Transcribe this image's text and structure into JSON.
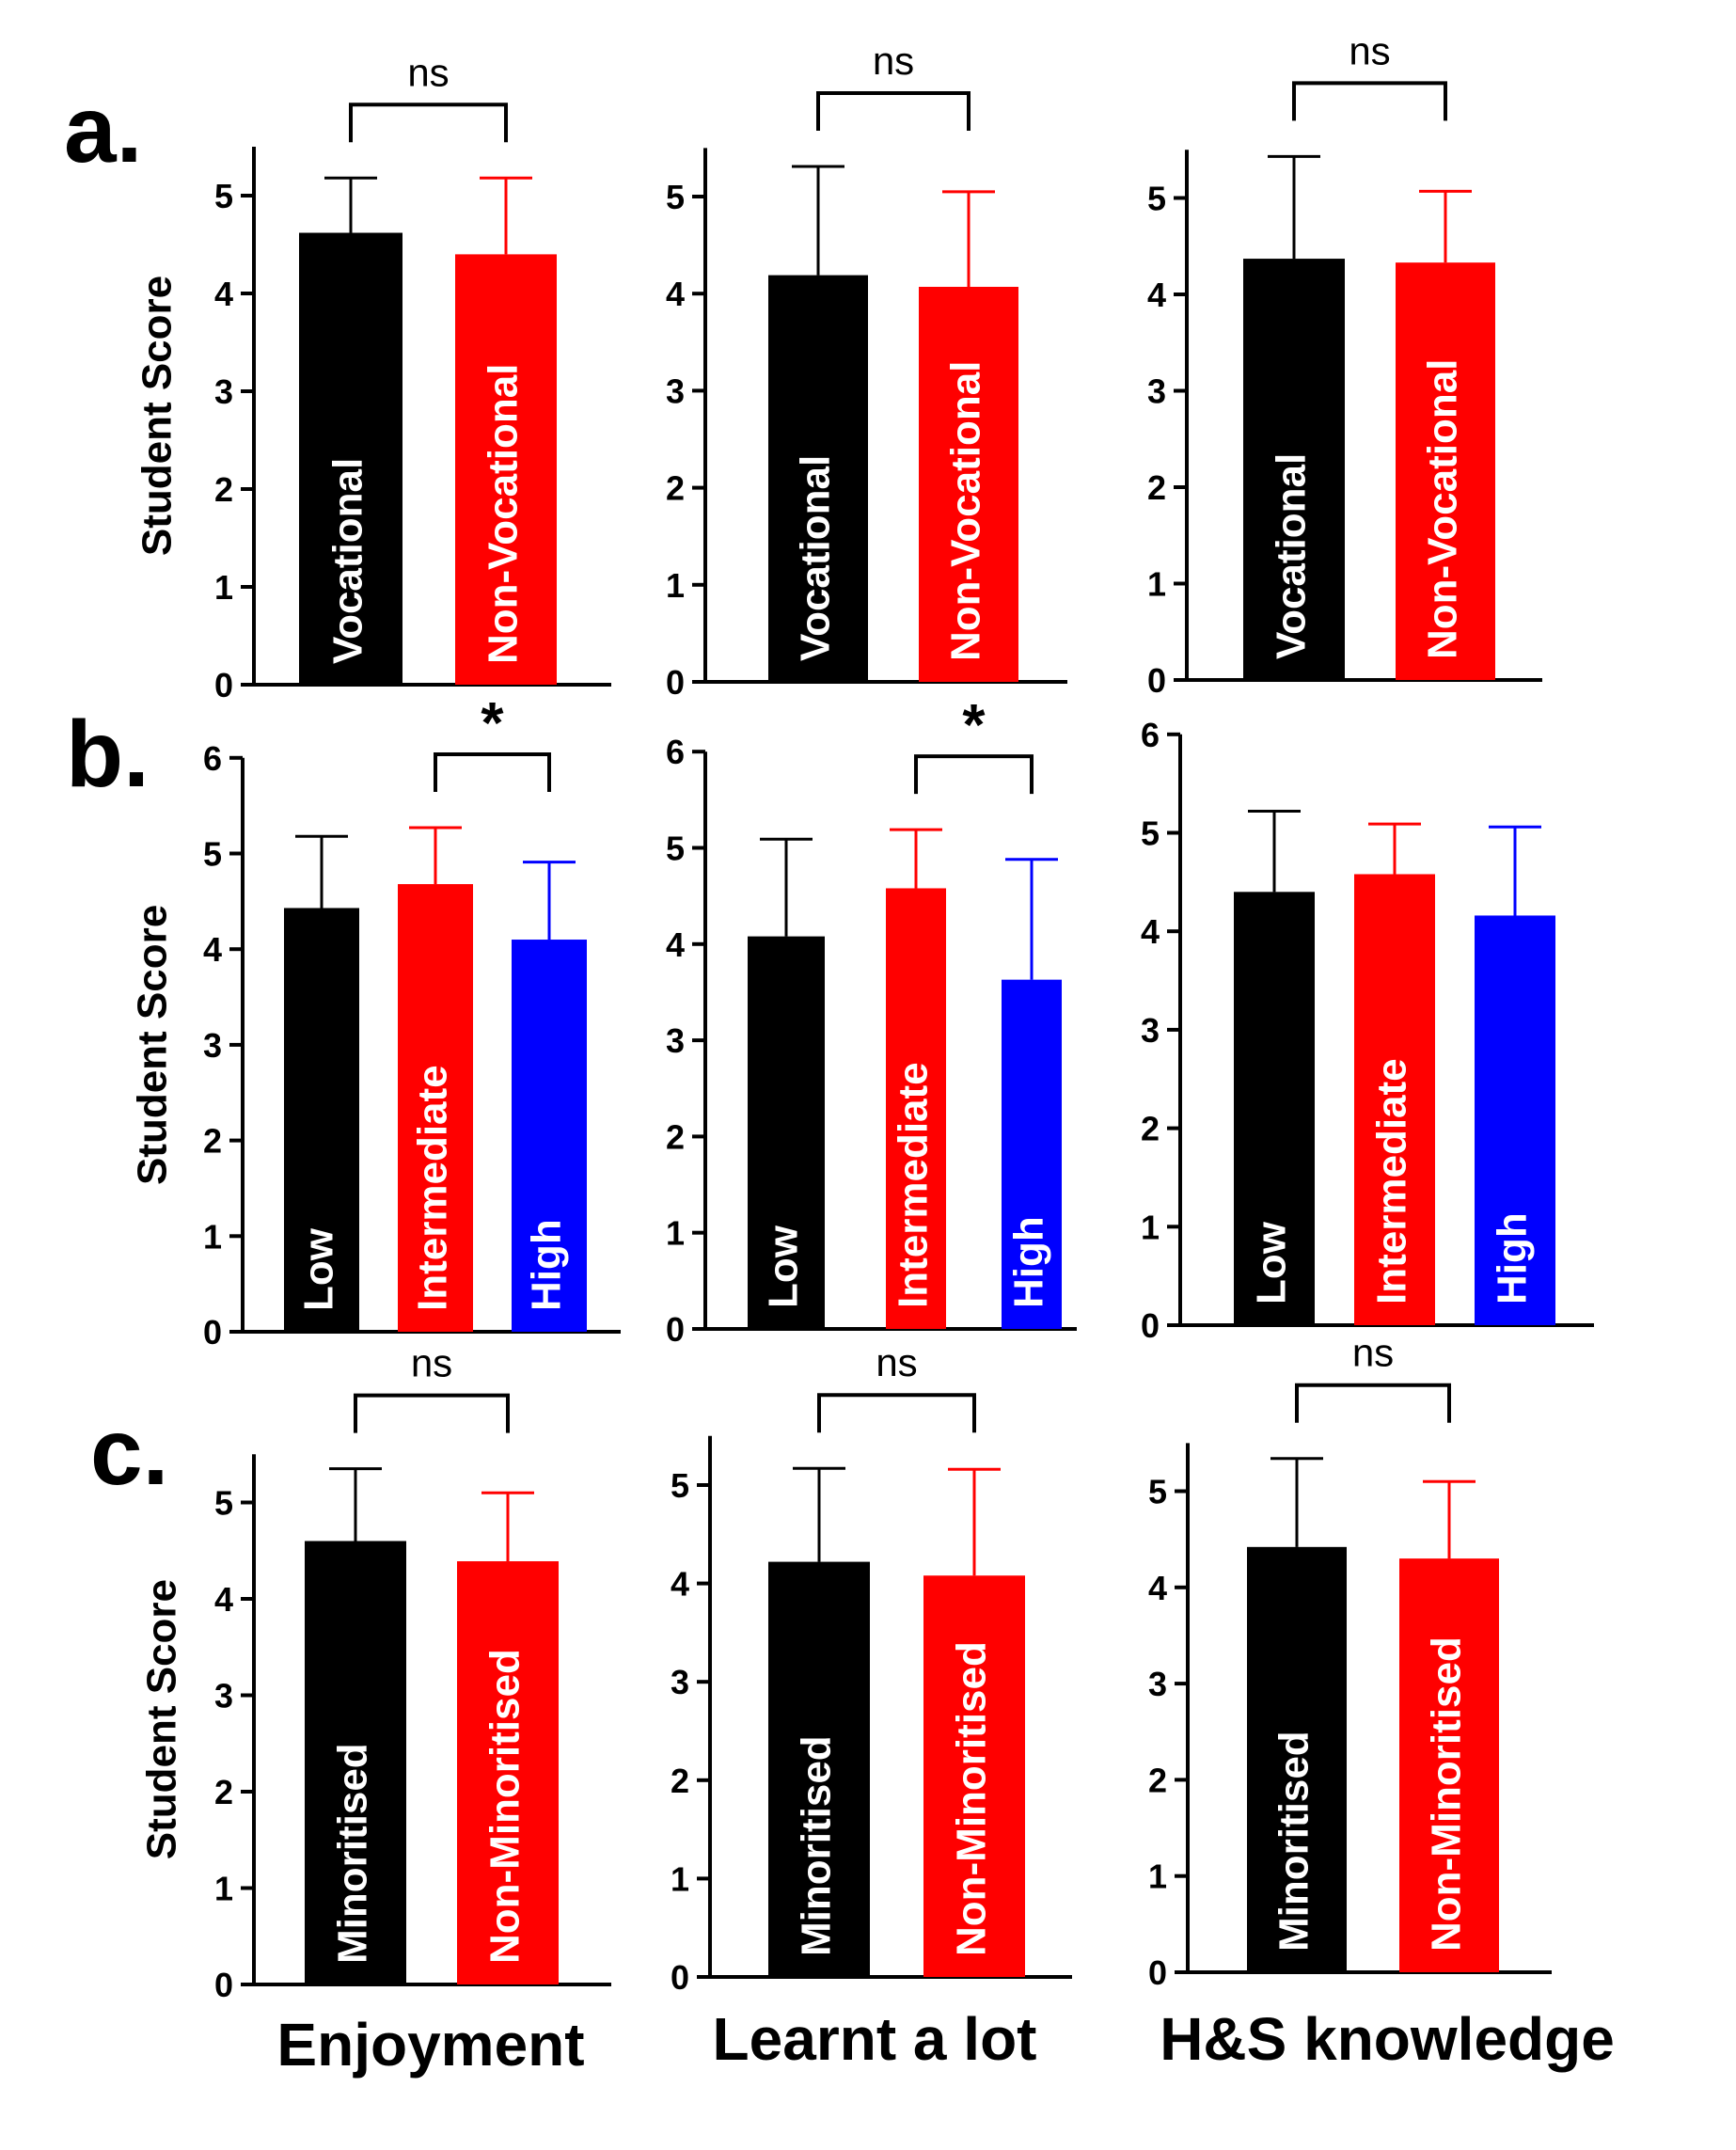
{
  "panel_letters": [
    "a.",
    "b.",
    "c."
  ],
  "column_titles": [
    "Enjoyment",
    "Learnt a lot",
    "H&S knowledge"
  ],
  "colors": {
    "black": "#000000",
    "red": "#ff0000",
    "blue": "#0000ff"
  },
  "chart_data": [
    {
      "type": "bar",
      "row": "a",
      "column": "Enjoyment",
      "ylabel": "Student Score",
      "ylim": [
        0,
        5.5
      ],
      "yticks": [
        0,
        1,
        2,
        3,
        4,
        5
      ],
      "categories": [
        "Vocational",
        "Non-Vocational"
      ],
      "values": [
        4.62,
        4.4
      ],
      "error": [
        0.56,
        0.78
      ],
      "bar_colors": [
        "#000000",
        "#ff0000"
      ],
      "significance": {
        "label": "ns",
        "between": [
          0,
          1
        ]
      }
    },
    {
      "type": "bar",
      "row": "a",
      "column": "Learnt a lot",
      "ylabel": "",
      "ylim": [
        0,
        5.5
      ],
      "yticks": [
        0,
        1,
        2,
        3,
        4,
        5
      ],
      "categories": [
        "Vocational",
        "Non-Vocational"
      ],
      "values": [
        4.19,
        4.07
      ],
      "error": [
        1.12,
        0.98
      ],
      "bar_colors": [
        "#000000",
        "#ff0000"
      ],
      "significance": {
        "label": "ns",
        "between": [
          0,
          1
        ]
      }
    },
    {
      "type": "bar",
      "row": "a",
      "column": "H&S knowledge",
      "ylabel": "",
      "ylim": [
        0,
        5.5
      ],
      "yticks": [
        0,
        1,
        2,
        3,
        4,
        5
      ],
      "categories": [
        "Vocational",
        "Non-Vocational"
      ],
      "values": [
        4.37,
        4.33
      ],
      "error": [
        1.06,
        0.74
      ],
      "bar_colors": [
        "#000000",
        "#ff0000"
      ],
      "significance": {
        "label": "ns",
        "between": [
          0,
          1
        ]
      }
    },
    {
      "type": "bar",
      "row": "b",
      "column": "Enjoyment",
      "ylabel": "Student Score",
      "ylim": [
        0,
        6
      ],
      "yticks": [
        0,
        1,
        2,
        3,
        4,
        5,
        6
      ],
      "categories": [
        "Low",
        "Intermediate",
        "High"
      ],
      "values": [
        4.43,
        4.68,
        4.1
      ],
      "error": [
        0.75,
        0.59,
        0.81
      ],
      "bar_colors": [
        "#000000",
        "#ff0000",
        "#0000ff"
      ],
      "significance": {
        "label": "*",
        "between": [
          1,
          2
        ]
      }
    },
    {
      "type": "bar",
      "row": "b",
      "column": "Learnt a lot",
      "ylabel": "",
      "ylim": [
        0,
        6
      ],
      "yticks": [
        0,
        1,
        2,
        3,
        4,
        5,
        6
      ],
      "categories": [
        "Low",
        "Intermediate",
        "High"
      ],
      "values": [
        4.08,
        4.58,
        3.63
      ],
      "error": [
        1.01,
        0.61,
        1.25
      ],
      "bar_colors": [
        "#000000",
        "#ff0000",
        "#0000ff"
      ],
      "significance": {
        "label": "*",
        "between": [
          1,
          2
        ]
      }
    },
    {
      "type": "bar",
      "row": "b",
      "column": "H&S knowledge",
      "ylabel": "",
      "ylim": [
        0,
        6
      ],
      "yticks": [
        0,
        1,
        2,
        3,
        4,
        5,
        6
      ],
      "categories": [
        "Low",
        "Intermediate",
        "High"
      ],
      "values": [
        4.4,
        4.58,
        4.16
      ],
      "error": [
        0.82,
        0.51,
        0.9
      ],
      "bar_colors": [
        "#000000",
        "#ff0000",
        "#0000ff"
      ],
      "significance": null
    },
    {
      "type": "bar",
      "row": "c",
      "column": "Enjoyment",
      "ylabel": "Student Score",
      "ylim": [
        0,
        5.5
      ],
      "yticks": [
        0,
        1,
        2,
        3,
        4,
        5
      ],
      "categories": [
        "Minoritised",
        "Non-Minoritised"
      ],
      "values": [
        4.6,
        4.39
      ],
      "error": [
        0.75,
        0.71
      ],
      "bar_colors": [
        "#000000",
        "#ff0000"
      ],
      "significance": {
        "label": "ns",
        "between": [
          0,
          1
        ]
      }
    },
    {
      "type": "bar",
      "row": "c",
      "column": "Learnt a lot",
      "ylabel": "",
      "ylim": [
        0,
        5.5
      ],
      "yticks": [
        0,
        1,
        2,
        3,
        4,
        5
      ],
      "categories": [
        "Minoritised",
        "Non-Minoritised"
      ],
      "values": [
        4.22,
        4.08
      ],
      "error": [
        0.95,
        1.08
      ],
      "bar_colors": [
        "#000000",
        "#ff0000"
      ],
      "significance": {
        "label": "ns",
        "between": [
          0,
          1
        ]
      }
    },
    {
      "type": "bar",
      "row": "c",
      "column": "H&S knowledge",
      "ylabel": "",
      "ylim": [
        0,
        5.5
      ],
      "yticks": [
        0,
        1,
        2,
        3,
        4,
        5
      ],
      "categories": [
        "Minoritised",
        "Non-Minoritised"
      ],
      "values": [
        4.42,
        4.3
      ],
      "error": [
        0.92,
        0.8
      ],
      "bar_colors": [
        "#000000",
        "#ff0000"
      ],
      "significance": {
        "label": "ns",
        "between": [
          0,
          1
        ]
      }
    }
  ]
}
